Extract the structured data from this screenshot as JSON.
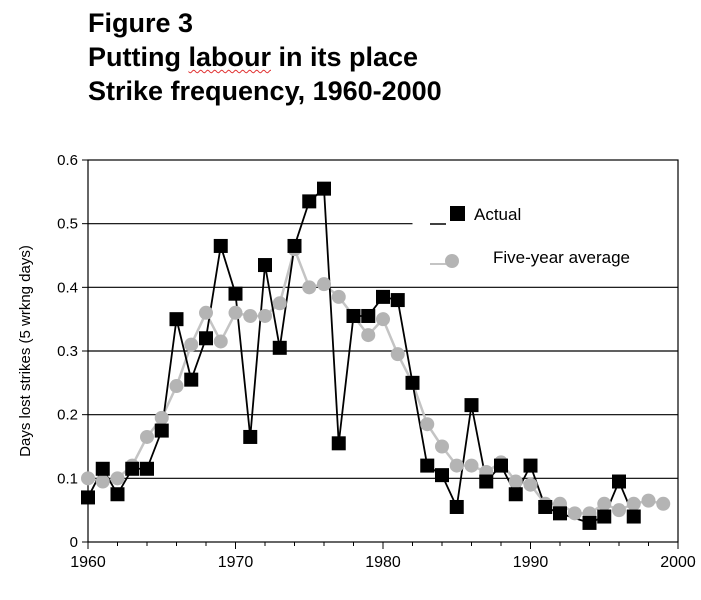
{
  "figure": {
    "label": "Figure 3",
    "title_pre": "Putting ",
    "title_flagged": "labour",
    "title_post": " in its place",
    "subtitle": "Strike frequency, 1960-2000"
  },
  "chart_data": {
    "type": "line",
    "title": "Putting labour in its place",
    "subtitle": "Strike frequency, 1960-2000",
    "xlabel": "",
    "ylabel": "Days lost strikes (5 wrkng days)",
    "xlim": [
      1960,
      2000
    ],
    "ylim": [
      0,
      0.6
    ],
    "x_ticks": [
      1960,
      1970,
      1980,
      1990,
      2000
    ],
    "y_ticks": [
      0,
      0.1,
      0.2,
      0.3,
      0.4,
      0.5,
      0.6
    ],
    "y_tick_labels": [
      "0",
      "0.1",
      "0.2",
      "0.3",
      "0.4",
      "0.5",
      "0.6"
    ],
    "grid": "horizontal",
    "legend_position": "top-right",
    "series": [
      {
        "name": "Actual",
        "marker": "square",
        "color": "#000000",
        "x": [
          1960,
          1961,
          1962,
          1963,
          1964,
          1965,
          1966,
          1967,
          1968,
          1969,
          1970,
          1971,
          1972,
          1973,
          1974,
          1975,
          1976,
          1977,
          1978,
          1979,
          1980,
          1981,
          1982,
          1983,
          1984,
          1985,
          1986,
          1987,
          1988,
          1989,
          1990,
          1991,
          1992,
          1994,
          1995,
          1996,
          1997
        ],
        "y": [
          0.07,
          0.115,
          0.075,
          0.115,
          0.115,
          0.175,
          0.35,
          0.255,
          0.32,
          0.465,
          0.39,
          0.165,
          0.435,
          0.305,
          0.465,
          0.535,
          0.555,
          0.155,
          0.355,
          0.355,
          0.385,
          0.38,
          0.25,
          0.12,
          0.105,
          0.055,
          0.215,
          0.095,
          0.12,
          0.075,
          0.12,
          0.055,
          0.045,
          0.03,
          0.04,
          0.095,
          0.04
        ]
      },
      {
        "name": "Five-year average",
        "marker": "circle",
        "color": "#aaaaaa",
        "x": [
          1960,
          1961,
          1962,
          1963,
          1964,
          1965,
          1966,
          1967,
          1968,
          1969,
          1970,
          1971,
          1972,
          1973,
          1974,
          1975,
          1976,
          1977,
          1978,
          1979,
          1980,
          1981,
          1982,
          1983,
          1984,
          1985,
          1986,
          1987,
          1988,
          1989,
          1990,
          1991,
          1992,
          1993,
          1994,
          1995,
          1996,
          1997,
          1998,
          1999
        ],
        "y": [
          0.1,
          0.095,
          0.1,
          0.12,
          0.165,
          0.195,
          0.245,
          0.31,
          0.36,
          0.315,
          0.36,
          0.355,
          0.355,
          0.375,
          0.46,
          0.4,
          0.405,
          0.385,
          0.355,
          0.325,
          0.35,
          0.295,
          0.25,
          0.185,
          0.15,
          0.12,
          0.12,
          0.11,
          0.125,
          0.095,
          0.09,
          0.06,
          0.06,
          0.045,
          0.045,
          0.06,
          0.05,
          0.06,
          0.065,
          0.06
        ]
      }
    ]
  }
}
